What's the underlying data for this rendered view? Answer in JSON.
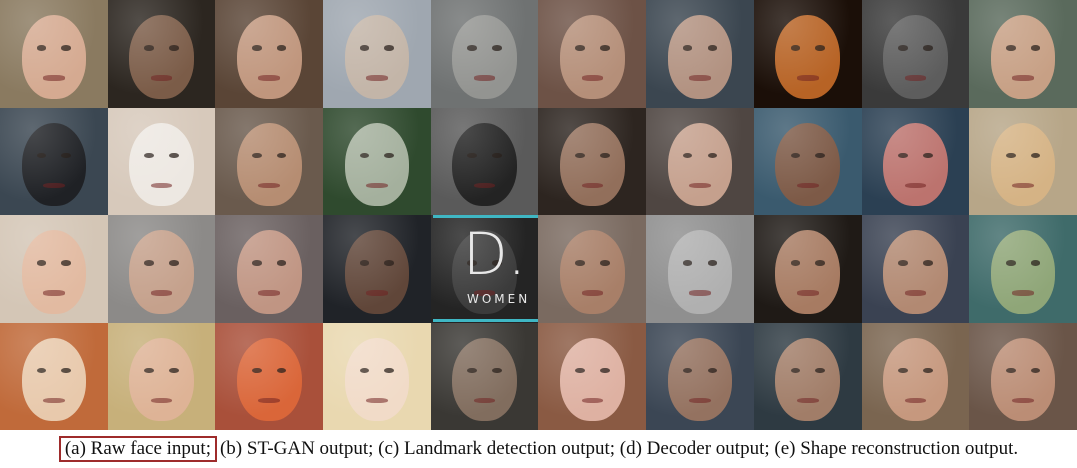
{
  "figure": {
    "caption": {
      "part_a": "(a) Raw face input;",
      "part_rest": "(b) ST-GAN output;  (c) Landmark detection output; (d) Decoder output; (e) Shape reconstruction output."
    },
    "embedded_text": {
      "logo_big": "D.",
      "logo_small": "WOMEN"
    },
    "highlight_color": "#9e2b2b",
    "logo_accent_color": "#3fb7c4",
    "grid": {
      "rows": 4,
      "cols": 10,
      "tiles": [
        {
          "bg": "#8a7a60",
          "face": "#e2b39a"
        },
        {
          "bg": "#2c2620",
          "face": "#8a6650"
        },
        {
          "bg": "#5a4536",
          "face": "#d2a58a"
        },
        {
          "bg": "#9fa7b0",
          "face": "#c9b7a7"
        },
        {
          "bg": "#6f7272",
          "face": "#9a9a96"
        },
        {
          "bg": "#6d5246",
          "face": "#c29a82"
        },
        {
          "bg": "#3b4650",
          "face": "#c8a089"
        },
        {
          "bg": "#1b0f08",
          "face": "#d2722a"
        },
        {
          "bg": "#3a3a3a",
          "face": "#646464"
        },
        {
          "bg": "#5a6a5c",
          "face": "#dba98c"
        },
        {
          "bg": "#3b4752",
          "face": "#1b1b1d"
        },
        {
          "bg": "#d7c9bb",
          "face": "#f1ede9"
        },
        {
          "bg": "#6a5a4d",
          "face": "#c39679"
        },
        {
          "bg": "#2f4a2e",
          "face": "#b8c2b0"
        },
        {
          "bg": "#5a5a5a",
          "face": "#1a1a1a"
        },
        {
          "bg": "#2d2520",
          "face": "#a57d66"
        },
        {
          "bg": "#4f4642",
          "face": "#d9b09a"
        },
        {
          "bg": "#3a5a6e",
          "face": "#8a5a41"
        },
        {
          "bg": "#2b4053",
          "face": "#d67c73"
        },
        {
          "bg": "#b7a688",
          "face": "#dbb585"
        },
        {
          "bg": "#d4c6b6",
          "face": "#e4b79e"
        },
        {
          "bg": "#8c8a88",
          "face": "#cfa58d"
        },
        {
          "bg": "#6a6060",
          "face": "#cf9f8a"
        },
        {
          "bg": "#202328",
          "face": "#6c4c3c"
        },
        {
          "bg": "#242424",
          "face": "#3f3f3f"
        },
        {
          "bg": "#7a6a60",
          "face": "#b0836a"
        },
        {
          "bg": "#8f8f8f",
          "face": "#b6b6b6"
        },
        {
          "bg": "#1f1a16",
          "face": "#c08d70"
        },
        {
          "bg": "#3a4252",
          "face": "#c89578"
        },
        {
          "bg": "#3f6b6a",
          "face": "#9db07a"
        },
        {
          "bg": "#c06a3a",
          "face": "#efd9c1"
        },
        {
          "bg": "#c7b07a",
          "face": "#e2b49b"
        },
        {
          "bg": "#a9503a",
          "face": "#e36a3a"
        },
        {
          "bg": "#e9d8b0",
          "face": "#f2dccd"
        },
        {
          "bg": "#3a3834",
          "face": "#8e7766"
        },
        {
          "bg": "#8a5a43",
          "face": "#ecc1b3"
        },
        {
          "bg": "#3b4654",
          "face": "#a47a63"
        },
        {
          "bg": "#2e3a42",
          "face": "#b58a6e"
        },
        {
          "bg": "#7a6550",
          "face": "#d4a186"
        },
        {
          "bg": "#6a5548",
          "face": "#c9987e"
        }
      ]
    }
  }
}
